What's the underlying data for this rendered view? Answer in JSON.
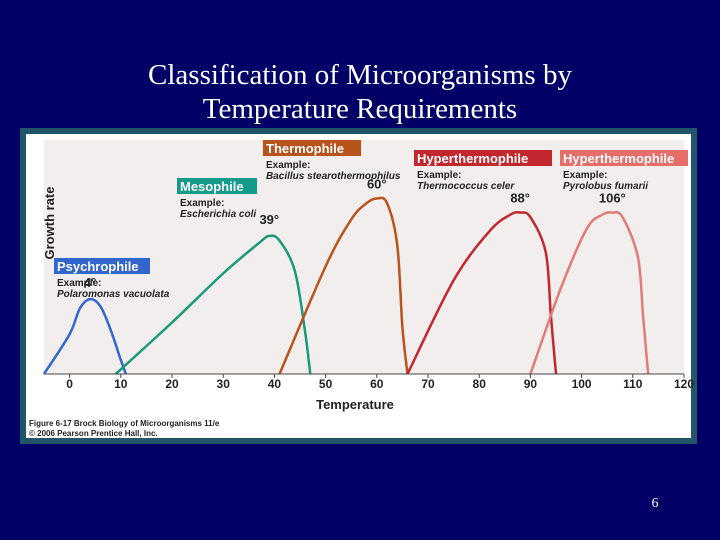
{
  "slide": {
    "title_line1": "Classification of Microorganisms by",
    "title_line2": "Temperature Requirements",
    "page_number": "6"
  },
  "figure": {
    "caption_line1": "Figure 6-17  Brock Biology of Microorganisms 11/e",
    "caption_line2": "© 2006 Pearson Prentice Hall, Inc."
  },
  "chart_data": {
    "type": "line",
    "xlabel": "Temperature",
    "ylabel": "Growth rate",
    "xlim": [
      -5,
      120
    ],
    "xticks": [
      0,
      10,
      20,
      30,
      40,
      50,
      60,
      70,
      80,
      90,
      100,
      110,
      120
    ],
    "ylim": [
      0,
      1
    ],
    "grid": false,
    "series": [
      {
        "name": "Psychrophile",
        "example_label": "Example:",
        "example": "Polaromonas vacuolata",
        "optimum_label": "4°",
        "color": "#3366cc",
        "label_bg": "#3366cc",
        "points": [
          [
            -5,
            0.0
          ],
          [
            0,
            0.17
          ],
          [
            2,
            0.28
          ],
          [
            4,
            0.32
          ],
          [
            6,
            0.29
          ],
          [
            8,
            0.19
          ],
          [
            10,
            0.06
          ],
          [
            11,
            0.0
          ]
        ]
      },
      {
        "name": "Mesophile",
        "example_label": "Example:",
        "example": "Escherichia coli",
        "optimum_label": "39°",
        "color": "#1a9a7a",
        "label_bg": "#149a88",
        "points": [
          [
            9,
            0.0
          ],
          [
            20,
            0.22
          ],
          [
            30,
            0.43
          ],
          [
            37,
            0.56
          ],
          [
            39,
            0.59
          ],
          [
            41,
            0.57
          ],
          [
            44,
            0.44
          ],
          [
            46,
            0.18
          ],
          [
            47,
            0.0
          ]
        ]
      },
      {
        "name": "Thermophile",
        "example_label": "Example:",
        "example": "Bacillus stearothermophilus",
        "optimum_label": "60°",
        "color": "#b8531c",
        "label_bg": "#b8531c",
        "points": [
          [
            41,
            0.0
          ],
          [
            50,
            0.46
          ],
          [
            55,
            0.66
          ],
          [
            58,
            0.73
          ],
          [
            60,
            0.75
          ],
          [
            62,
            0.73
          ],
          [
            64,
            0.55
          ],
          [
            65,
            0.2
          ],
          [
            66,
            0.0
          ]
        ]
      },
      {
        "name": "Hyperthermophile",
        "example_label": "Example:",
        "example": "Thermococcus celer",
        "optimum_label": "88°",
        "color": "#c1272d",
        "label_bg": "#c1272d",
        "points": [
          [
            66,
            0.0
          ],
          [
            75,
            0.4
          ],
          [
            82,
            0.61
          ],
          [
            86,
            0.68
          ],
          [
            88,
            0.69
          ],
          [
            90,
            0.67
          ],
          [
            93,
            0.52
          ],
          [
            94,
            0.25
          ],
          [
            95,
            0.0
          ]
        ]
      },
      {
        "name": "Hyperthermophile",
        "example_label": "Example:",
        "example": "Pyrolobus fumarii",
        "optimum_label": "106°",
        "color": "#e07b78",
        "label_bg": "#e66e6a",
        "points": [
          [
            90,
            0.0
          ],
          [
            96,
            0.37
          ],
          [
            101,
            0.62
          ],
          [
            104,
            0.68
          ],
          [
            106,
            0.69
          ],
          [
            108,
            0.67
          ],
          [
            111,
            0.5
          ],
          [
            112,
            0.25
          ],
          [
            113,
            0.0
          ]
        ]
      }
    ]
  }
}
